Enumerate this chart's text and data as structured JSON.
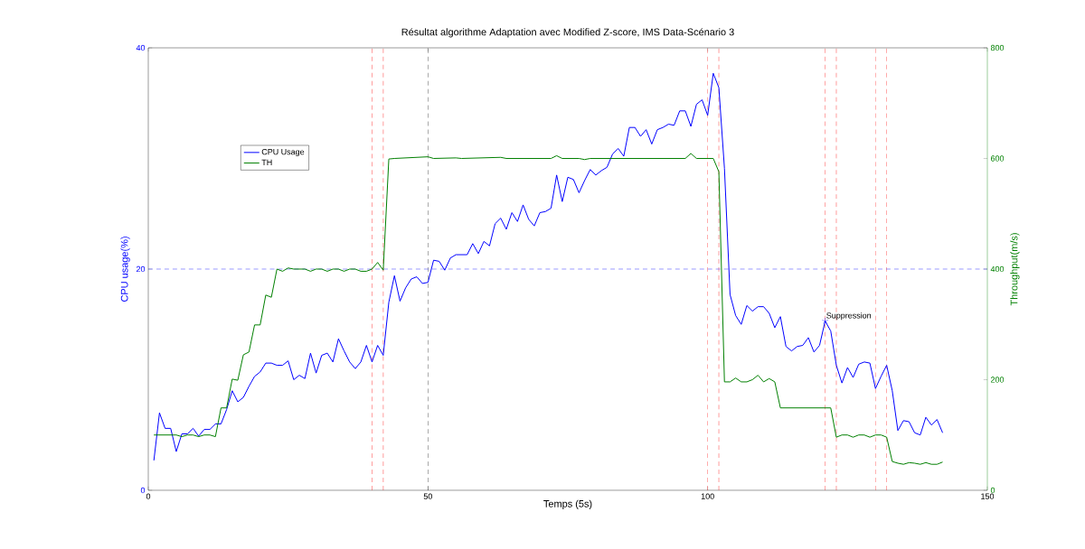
{
  "chart_data": {
    "type": "line",
    "title": "Résultat algorithme Adaptation avec Modified Z-score, IMS Data-Scénario 3",
    "xlabel": "Temps (5s)",
    "ylabel": "CPU usage(%)",
    "y2label": "Throughput(m/s)",
    "xlim": [
      0,
      150
    ],
    "xticks": [
      0,
      50,
      100,
      150
    ],
    "ylim": [
      0,
      40
    ],
    "yticks": [
      0,
      20,
      40
    ],
    "y2lim": [
      0,
      800
    ],
    "y2ticks": [
      0,
      200,
      400,
      600,
      800
    ],
    "legend": "top left",
    "series": [
      {
        "name": "CPU Usage",
        "color": "#0000ff",
        "x": [
          1,
          2,
          3,
          4,
          5,
          6,
          7,
          8,
          9,
          10,
          11,
          12,
          13,
          14,
          15,
          16,
          17,
          18,
          19,
          20,
          21,
          22,
          23,
          24,
          25,
          26,
          27,
          28,
          29,
          30,
          31,
          32,
          33,
          34,
          35,
          36,
          37,
          38,
          39,
          40,
          41,
          42,
          43,
          44,
          45,
          46,
          47,
          48,
          49,
          50,
          51,
          52,
          53,
          54,
          55,
          57,
          58,
          59,
          60,
          61,
          62,
          63,
          64,
          65,
          66,
          67,
          68,
          69,
          70,
          71,
          72,
          73,
          74,
          75,
          76,
          77,
          78,
          79,
          80,
          81,
          82,
          83,
          84,
          85,
          86,
          87,
          88,
          89,
          90,
          91,
          92,
          93,
          94,
          95,
          96,
          97,
          98,
          99,
          100,
          101,
          102,
          103,
          104,
          105,
          106,
          107,
          108,
          109,
          110,
          111,
          112,
          113,
          114,
          115,
          116,
          117,
          118,
          119,
          120,
          121,
          122,
          123,
          124,
          125,
          126,
          127,
          128,
          129,
          130,
          131,
          132,
          133,
          134,
          135,
          136,
          137,
          138,
          139,
          140,
          141,
          142
        ],
        "values": [
          2.7,
          7.0,
          5.6,
          5.6,
          3.5,
          5.1,
          5.1,
          5.6,
          4.9,
          5.5,
          5.5,
          6.0,
          6.0,
          7.3,
          9.0,
          8.0,
          8.4,
          9.4,
          10.3,
          10.7,
          11.5,
          11.5,
          11.3,
          11.3,
          11.7,
          10.0,
          10.4,
          10.1,
          12.4,
          10.6,
          12.2,
          12.4,
          11.6,
          13.7,
          12.6,
          11.6,
          11.0,
          11.6,
          13.1,
          11.6,
          13.1,
          12.2,
          17.0,
          19.4,
          17.1,
          18.3,
          19.1,
          19.3,
          18.7,
          18.8,
          20.8,
          20.7,
          19.9,
          21.0,
          21.3,
          21.3,
          22.3,
          21.4,
          22.5,
          22.1,
          24.1,
          24.6,
          23.6,
          25.1,
          24.3,
          25.8,
          24.5,
          23.9,
          25.1,
          25.2,
          25.5,
          28.5,
          26.1,
          28.3,
          28.1,
          26.9,
          28.0,
          29.0,
          28.5,
          28.9,
          29.2,
          30.4,
          30.9,
          30.2,
          32.8,
          32.8,
          32.0,
          32.6,
          31.3,
          32.6,
          32.8,
          33.1,
          33.0,
          34.3,
          34.3,
          32.9,
          34.9,
          35.3,
          33.9,
          37.7,
          36.4,
          29.1,
          17.7,
          15.8,
          15.0,
          16.7,
          16.2,
          16.6,
          16.6,
          16.0,
          14.7,
          15.7,
          13.0,
          12.6,
          13.0,
          13.1,
          13.8,
          12.5,
          13.1,
          15.3,
          14.4,
          11.3,
          9.7,
          11.1,
          10.2,
          11.4,
          11.6,
          11.5,
          9.2,
          10.3,
          11.3,
          9.0,
          5.4,
          6.3,
          6.2,
          5.2,
          5.0,
          6.6,
          5.9,
          6.4,
          5.2
        ]
      },
      {
        "name": "TH",
        "color": "#008000",
        "axis": "y2",
        "x": [
          1,
          5,
          6,
          7,
          8,
          9,
          10,
          11,
          12,
          13,
          14,
          15,
          16,
          17,
          18,
          19,
          20,
          21,
          22,
          23,
          24,
          25,
          26,
          28,
          29,
          30,
          31,
          32,
          33,
          34,
          35,
          36,
          37,
          38,
          39,
          40,
          41,
          42,
          43,
          44,
          50,
          51,
          55,
          56,
          63,
          64,
          72,
          73,
          74,
          77,
          78,
          79,
          96,
          97,
          98,
          101,
          102,
          103,
          104,
          105,
          106,
          107,
          108,
          109,
          110,
          111,
          112,
          113,
          122,
          123,
          124,
          125,
          126,
          127,
          128,
          129,
          130,
          131,
          132,
          133,
          134,
          135,
          136,
          137,
          138,
          139,
          140,
          141,
          142
        ],
        "values": [
          100,
          100,
          97,
          100,
          100,
          97,
          100,
          100,
          97,
          149,
          149,
          201,
          199,
          245,
          250,
          299,
          299,
          353,
          349,
          400,
          396,
          402,
          400,
          400,
          396,
          400,
          400,
          396,
          400,
          400,
          396,
          400,
          400,
          396,
          396,
          400,
          412,
          398,
          599,
          600,
          603,
          600,
          601,
          600,
          602,
          600,
          600,
          605,
          600,
          600,
          598,
          600,
          600,
          609,
          600,
          600,
          576,
          196,
          196,
          203,
          196,
          196,
          200,
          208,
          196,
          202,
          196,
          149,
          149,
          96,
          100,
          100,
          96,
          100,
          100,
          96,
          100,
          100,
          96,
          52,
          49,
          47,
          50,
          49,
          47,
          50,
          47,
          47,
          51
        ]
      }
    ],
    "ref_lines": [
      {
        "axis": "x",
        "value": 40,
        "color": "#ff0000",
        "line_style": "dashed"
      },
      {
        "axis": "x",
        "value": 42,
        "color": "#ff0000",
        "line_style": "dashed"
      },
      {
        "axis": "x",
        "value": 50,
        "color": "#000000",
        "line_style": "dashed"
      },
      {
        "axis": "x",
        "value": 100,
        "color": "#ff0000",
        "line_style": "dashed"
      },
      {
        "axis": "x",
        "value": 102,
        "color": "#ff0000",
        "line_style": "dashed"
      },
      {
        "axis": "x",
        "value": 121,
        "color": "#ff0000",
        "line_style": "dashed"
      },
      {
        "axis": "x",
        "value": 123,
        "color": "#ff0000",
        "line_style": "dashed"
      },
      {
        "axis": "x",
        "value": 130,
        "color": "#ff0000",
        "line_style": "dashed"
      },
      {
        "axis": "x",
        "value": 132,
        "color": "#ff0000",
        "line_style": "dashed"
      },
      {
        "axis": "y",
        "value": 20,
        "color": "#0000ff",
        "line_style": "dashed"
      }
    ],
    "annotations": [
      {
        "text": "Suppression",
        "x": 121,
        "y": 15.3
      }
    ]
  }
}
